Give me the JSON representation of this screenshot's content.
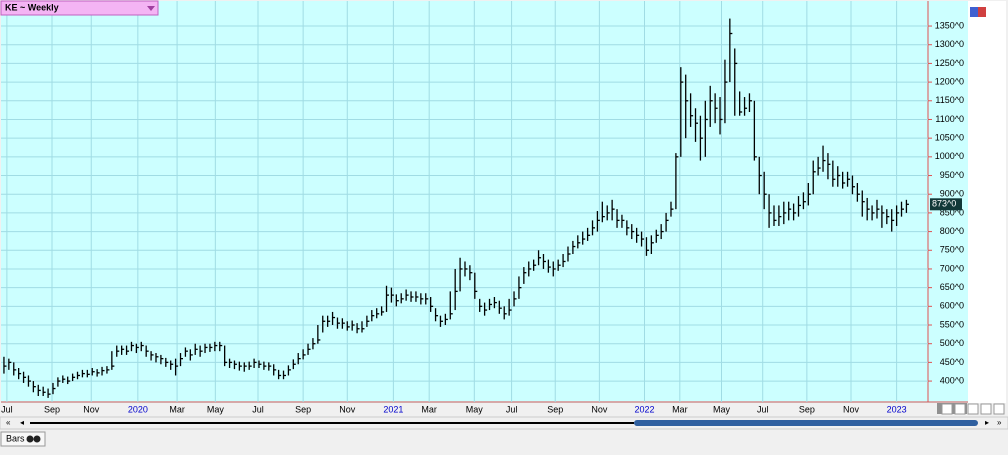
{
  "chart_data": {
    "type": "ohlc",
    "title": "KE ~ Weekly",
    "footer": "Bars",
    "color": "#000000",
    "xlim": [
      -0.6,
      188.4
    ],
    "ylim": [
      344,
      1417
    ],
    "yticks": [
      {
        "value": 400,
        "label": "400^0"
      },
      {
        "value": 450,
        "label": "450^0"
      },
      {
        "value": 500,
        "label": "500^0"
      },
      {
        "value": 550,
        "label": "550^0"
      },
      {
        "value": 600,
        "label": "600^0"
      },
      {
        "value": 650,
        "label": "650^0"
      },
      {
        "value": 700,
        "label": "700^0"
      },
      {
        "value": 750,
        "label": "750^0"
      },
      {
        "value": 800,
        "label": "800^0"
      },
      {
        "value": 850,
        "label": "850^0"
      },
      {
        "value": 900,
        "label": "900^0"
      },
      {
        "value": 950,
        "label": "950^0"
      },
      {
        "value": 1000,
        "label": "1000^0"
      },
      {
        "value": 1050,
        "label": "1050^0"
      },
      {
        "value": 1100,
        "label": "1100^0"
      },
      {
        "value": 1150,
        "label": "1150^0"
      },
      {
        "value": 1200,
        "label": "1200^0"
      },
      {
        "value": 1250,
        "label": "1250^0"
      },
      {
        "value": 1300,
        "label": "1300^0"
      },
      {
        "value": 1350,
        "label": "1350^0"
      }
    ],
    "xticks": [
      {
        "value": 0.6,
        "label": "Jul"
      },
      {
        "value": 9.8,
        "label": "Sep"
      },
      {
        "value": 17.8,
        "label": "Nov"
      },
      {
        "value": 27.3,
        "label": "2020",
        "color": "#0000cc"
      },
      {
        "value": 35.3,
        "label": "Mar"
      },
      {
        "value": 43.1,
        "label": "May"
      },
      {
        "value": 51.8,
        "label": "Jul"
      },
      {
        "value": 61,
        "label": "Sep"
      },
      {
        "value": 70,
        "label": "Nov"
      },
      {
        "value": 79.4,
        "label": "2021",
        "color": "#0000cc"
      },
      {
        "value": 86.7,
        "label": "Mar"
      },
      {
        "value": 95.9,
        "label": "May"
      },
      {
        "value": 103.5,
        "label": "Jul"
      },
      {
        "value": 112.4,
        "label": "Sep"
      },
      {
        "value": 121.4,
        "label": "Nov"
      },
      {
        "value": 130.6,
        "label": "2022",
        "color": "#0000cc"
      },
      {
        "value": 137.8,
        "label": "Mar"
      },
      {
        "value": 146.3,
        "label": "May"
      },
      {
        "value": 154.7,
        "label": "Jul"
      },
      {
        "value": 163.7,
        "label": "Sep"
      },
      {
        "value": 172.7,
        "label": "Nov"
      },
      {
        "value": 182,
        "label": "2023",
        "color": "#0000cc"
      }
    ],
    "last_price": {
      "value": 873,
      "label": "873^0"
    },
    "grid": true,
    "close": [
      440,
      450,
      430,
      420,
      410,
      400,
      385,
      375,
      370,
      365,
      380,
      400,
      405,
      400,
      410,
      415,
      420,
      418,
      425,
      422,
      428,
      430,
      440,
      480,
      485,
      480,
      495,
      490,
      495,
      480,
      470,
      465,
      460,
      450,
      445,
      440,
      460,
      480,
      470,
      485,
      480,
      490,
      490,
      495,
      495,
      450,
      450,
      445,
      440,
      440,
      440,
      450,
      445,
      440,
      440,
      430,
      415,
      415,
      430,
      445,
      460,
      470,
      485,
      500,
      510,
      560,
      560,
      570,
      555,
      555,
      545,
      550,
      540,
      540,
      560,
      575,
      580,
      585,
      630,
      630,
      615,
      620,
      630,
      625,
      625,
      620,
      620,
      600,
      575,
      560,
      565,
      580,
      640,
      700,
      700,
      690,
      640,
      600,
      590,
      605,
      610,
      595,
      580,
      590,
      620,
      650,
      690,
      700,
      710,
      730,
      720,
      705,
      700,
      710,
      720,
      740,
      760,
      770,
      780,
      790,
      810,
      830,
      840,
      850,
      860,
      830,
      830,
      810,
      800,
      790,
      780,
      750,
      770,
      790,
      800,
      830,
      860,
      1000,
      1200,
      1150,
      1110,
      1090,
      1050,
      1100,
      1150,
      1130,
      1100,
      1200,
      1330,
      1250,
      1120,
      1130,
      1150,
      1000,
      950,
      900,
      850,
      830,
      840,
      850,
      860,
      850,
      870,
      880,
      900,
      960,
      970,
      990,
      980,
      940,
      950,
      930,
      940,
      920,
      900,
      880,
      860,
      850,
      860,
      850,
      840,
      830,
      850,
      860,
      873
    ],
    "high": [
      465,
      460,
      450,
      435,
      425,
      415,
      400,
      390,
      385,
      380,
      395,
      410,
      415,
      412,
      420,
      425,
      430,
      430,
      435,
      432,
      438,
      440,
      480,
      495,
      495,
      495,
      505,
      500,
      505,
      495,
      480,
      475,
      470,
      462,
      455,
      460,
      475,
      490,
      485,
      500,
      495,
      500,
      500,
      505,
      505,
      495,
      460,
      455,
      452,
      450,
      452,
      460,
      455,
      452,
      450,
      445,
      430,
      428,
      442,
      458,
      475,
      485,
      500,
      515,
      550,
      575,
      575,
      585,
      570,
      568,
      560,
      562,
      555,
      560,
      575,
      590,
      595,
      600,
      655,
      650,
      632,
      635,
      645,
      640,
      640,
      635,
      635,
      625,
      595,
      575,
      580,
      640,
      700,
      730,
      720,
      710,
      690,
      620,
      610,
      620,
      625,
      615,
      600,
      620,
      640,
      680,
      705,
      720,
      725,
      750,
      740,
      725,
      720,
      725,
      740,
      760,
      775,
      790,
      800,
      810,
      830,
      855,
      880,
      870,
      885,
      860,
      845,
      830,
      820,
      810,
      800,
      785,
      790,
      805,
      820,
      850,
      880,
      1010,
      1240,
      1220,
      1170,
      1130,
      1110,
      1150,
      1190,
      1170,
      1160,
      1260,
      1370,
      1290,
      1175,
      1160,
      1170,
      1150,
      1000,
      960,
      900,
      870,
      870,
      880,
      880,
      875,
      895,
      905,
      930,
      990,
      1000,
      1030,
      1010,
      990,
      975,
      960,
      960,
      950,
      930,
      910,
      890,
      870,
      885,
      870,
      860,
      860,
      870,
      880,
      885
    ],
    "low": [
      420,
      430,
      415,
      405,
      395,
      385,
      370,
      360,
      360,
      355,
      365,
      385,
      395,
      392,
      400,
      405,
      410,
      410,
      415,
      412,
      415,
      420,
      430,
      465,
      470,
      470,
      480,
      475,
      480,
      465,
      455,
      450,
      445,
      438,
      430,
      415,
      440,
      465,
      455,
      470,
      465,
      475,
      478,
      480,
      480,
      440,
      435,
      432,
      428,
      425,
      430,
      435,
      435,
      430,
      428,
      415,
      405,
      405,
      415,
      432,
      445,
      458,
      470,
      485,
      500,
      530,
      545,
      550,
      540,
      540,
      535,
      535,
      528,
      530,
      545,
      560,
      568,
      575,
      585,
      610,
      600,
      608,
      615,
      612,
      612,
      605,
      605,
      585,
      560,
      545,
      550,
      565,
      590,
      640,
      680,
      670,
      620,
      585,
      575,
      590,
      595,
      580,
      565,
      575,
      600,
      620,
      660,
      680,
      695,
      710,
      700,
      690,
      680,
      695,
      705,
      720,
      740,
      755,
      765,
      775,
      790,
      800,
      825,
      830,
      830,
      810,
      810,
      790,
      780,
      770,
      760,
      735,
      740,
      770,
      780,
      800,
      840,
      860,
      1000,
      1050,
      1080,
      1040,
      990,
      1000,
      1080,
      1090,
      1060,
      1090,
      1200,
      1110,
      1110,
      1110,
      1120,
      990,
      900,
      860,
      810,
      815,
      815,
      820,
      830,
      830,
      840,
      860,
      870,
      900,
      950,
      960,
      940,
      920,
      920,
      915,
      920,
      900,
      880,
      840,
      830,
      830,
      835,
      810,
      820,
      800,
      815,
      840,
      850
    ]
  }
}
